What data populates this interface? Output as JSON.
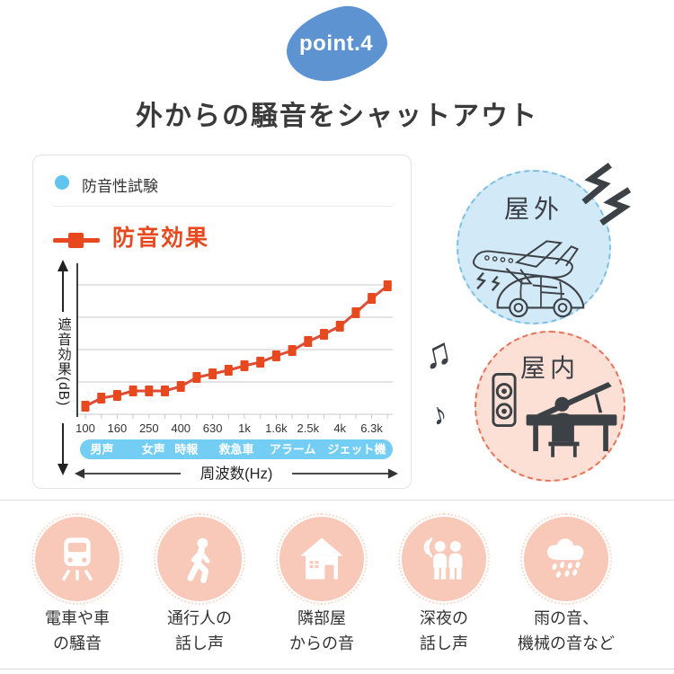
{
  "badge": {
    "label": "point.4",
    "color": "#5e93d1"
  },
  "title": "外からの騒音をシャットアウト",
  "panel": {
    "legend_test_label": "防音性試験",
    "legend_effect_label": "防音効果",
    "ylabel": "遮音効果(dB)",
    "xlabel": "周波数(Hz)"
  },
  "chart_data": {
    "type": "line",
    "series_name": "防音効果",
    "xlabel": "周波数(Hz)",
    "ylabel": "遮音効果(dB)",
    "x_tick_labels": [
      "100",
      "160",
      "250",
      "400",
      "630",
      "1k",
      "1.6k",
      "2.5k",
      "4k",
      "6.3k"
    ],
    "tick_label_every": 2,
    "values": [
      9,
      18,
      21,
      26,
      26,
      26,
      31,
      41,
      45,
      49,
      54,
      58,
      65,
      71,
      81,
      89,
      98,
      113,
      129,
      143
    ],
    "ylim": [
      0,
      170
    ],
    "y_numeric_ticks_shown": false,
    "grid": true,
    "marker": "square",
    "line_color": "#dc4e35",
    "marker_color": "#e8481d",
    "band_color": "#74cdf3",
    "sound_bands": [
      {
        "label": "男声",
        "pos": 0.07
      },
      {
        "label": "女声",
        "pos": 0.235
      },
      {
        "label": "時報",
        "pos": 0.34
      },
      {
        "label": "救急車",
        "pos": 0.5
      },
      {
        "label": "アラーム",
        "pos": 0.68
      },
      {
        "label": "ジェット機",
        "pos": 0.885
      }
    ]
  },
  "outdoor": {
    "label": "屋外",
    "icons": [
      "airplane-icon",
      "car-icon",
      "noise-zigzag-icon"
    ]
  },
  "indoor": {
    "label": "屋内",
    "icons": [
      "speaker-icon",
      "piano-player-icon",
      "music-note-icon"
    ]
  },
  "decor": {
    "double_note": "♫",
    "single_note": "♪"
  },
  "noise_sources": [
    {
      "icon": "train-icon",
      "line1": "電車や車",
      "line2": "の騒音"
    },
    {
      "icon": "pedestrian-icon",
      "line1": "通行人の",
      "line2": "話し声"
    },
    {
      "icon": "house-icon",
      "line1": "隣部屋",
      "line2": "からの音"
    },
    {
      "icon": "talking-people-icon",
      "line1": "深夜の",
      "line2": "話し声"
    },
    {
      "icon": "rain-icon",
      "line1": "雨の音、",
      "line2": "機械の音など"
    }
  ],
  "colors": {
    "accent_orange": "#e8481d",
    "legend_blue": "#5fc4ee",
    "band_blue": "#74cdf3",
    "outdoor_fill": "#d2e9f7",
    "outdoor_border": "#7fbfe3",
    "indoor_fill": "#fcdfd5",
    "indoor_border": "#e57459",
    "source_circle": "#f8c8b8",
    "dark_icon": "#3c4146",
    "badge_blue": "#5e93d1"
  }
}
